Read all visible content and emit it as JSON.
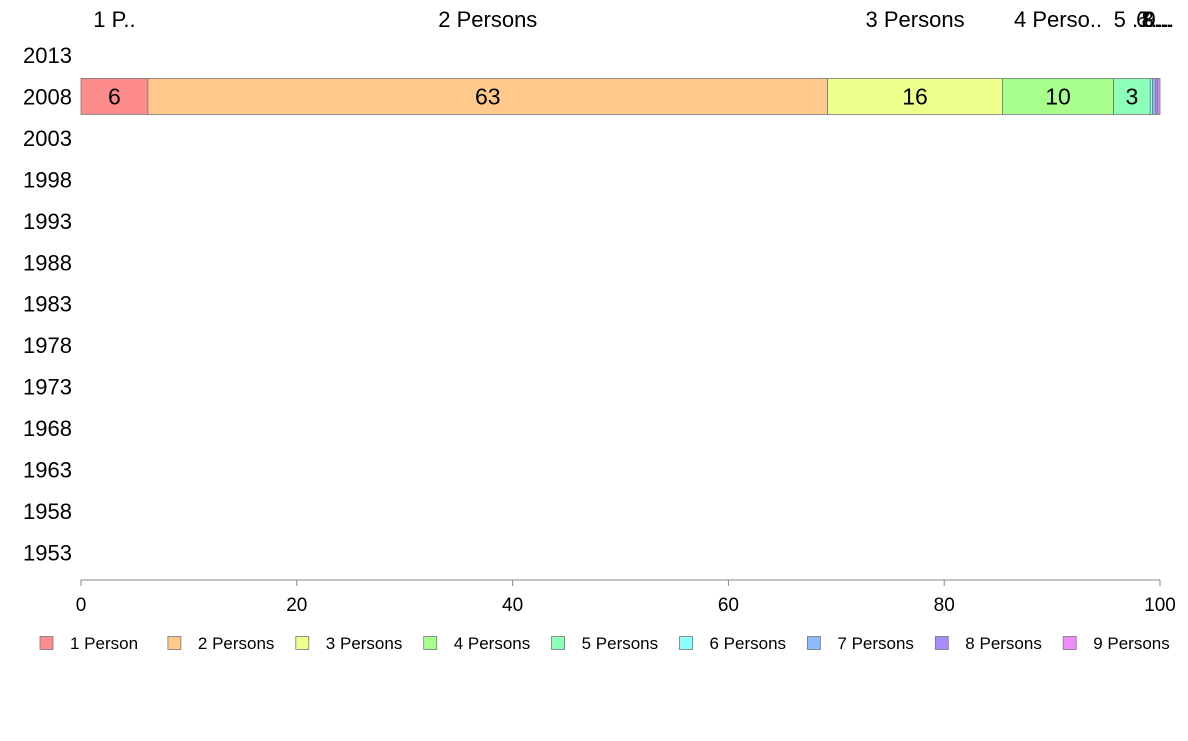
{
  "chart_data": {
    "type": "bar",
    "orientation": "horizontal",
    "stacked": true,
    "categories": [
      "2013",
      "2008",
      "2003",
      "1998",
      "1993",
      "1988",
      "1983",
      "1978",
      "1973",
      "1968",
      "1963",
      "1958",
      "1953"
    ],
    "series": [
      {
        "name": "1 Person",
        "color": "#ff8c8c",
        "values": [
          null,
          6.2,
          null,
          null,
          null,
          null,
          null,
          null,
          null,
          null,
          null,
          null,
          null
        ],
        "data_label": "6",
        "top_label": "1 P.."
      },
      {
        "name": "2 Persons",
        "color": "#ffc98c",
        "values": [
          null,
          63.0,
          null,
          null,
          null,
          null,
          null,
          null,
          null,
          null,
          null,
          null,
          null
        ],
        "data_label": "63",
        "top_label": "2 Persons"
      },
      {
        "name": "3 Persons",
        "color": "#eeff8c",
        "values": [
          null,
          16.2,
          null,
          null,
          null,
          null,
          null,
          null,
          null,
          null,
          null,
          null,
          null
        ],
        "data_label": "16",
        "top_label": "3 Persons"
      },
      {
        "name": "4 Persons",
        "color": "#a8ff8c",
        "values": [
          null,
          10.3,
          null,
          null,
          null,
          null,
          null,
          null,
          null,
          null,
          null,
          null,
          null
        ],
        "data_label": "10",
        "top_label": "4 Perso.."
      },
      {
        "name": "5 Persons",
        "color": "#8cffb9",
        "values": [
          null,
          3.4,
          null,
          null,
          null,
          null,
          null,
          null,
          null,
          null,
          null,
          null,
          null
        ],
        "data_label": "3",
        "top_label": "5 ..."
      },
      {
        "name": "6 Persons",
        "color": "#8cffff",
        "values": [
          null,
          0.2,
          null,
          null,
          null,
          null,
          null,
          null,
          null,
          null,
          null,
          null,
          null
        ],
        "data_label": "",
        "top_label": "6..."
      },
      {
        "name": "7 Persons",
        "color": "#8cb9ff",
        "values": [
          null,
          0.3,
          null,
          null,
          null,
          null,
          null,
          null,
          null,
          null,
          null,
          null,
          null
        ],
        "data_label": "",
        "top_label": "7..."
      },
      {
        "name": "8 Persons",
        "color": "#a88cff",
        "values": [
          null,
          0.2,
          null,
          null,
          null,
          null,
          null,
          null,
          null,
          null,
          null,
          null,
          null
        ],
        "data_label": "",
        "top_label": "8..."
      },
      {
        "name": "9 Persons",
        "color": "#ee8cff",
        "values": [
          null,
          0.2,
          null,
          null,
          null,
          null,
          null,
          null,
          null,
          null,
          null,
          null,
          null
        ],
        "data_label": "",
        "top_label": "9..."
      }
    ],
    "xlim": [
      0,
      100
    ],
    "xticks": [
      "0",
      "20",
      "40",
      "60",
      "80",
      "100"
    ],
    "title": "",
    "xlabel": "",
    "ylabel": "",
    "grid": false,
    "legend_position": "bottom"
  }
}
